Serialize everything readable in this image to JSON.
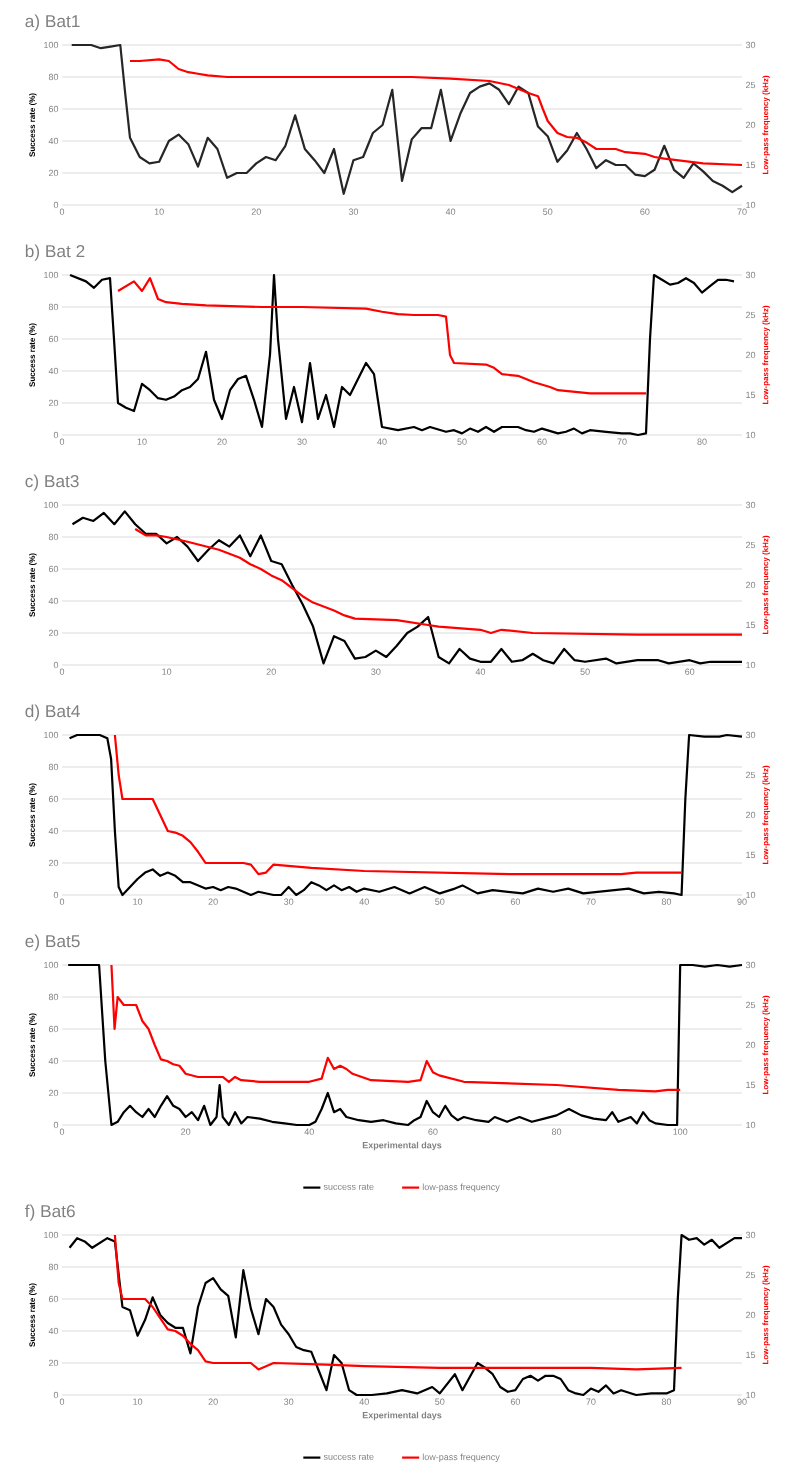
{
  "chart_data": [
    {
      "type": "line",
      "title": "a) Bat1",
      "ylabel": "Success rate (%)",
      "y2label": "Low-pass frequency (kHz)",
      "xlim": [
        0,
        70
      ],
      "xticks": [
        0,
        10,
        20,
        30,
        40,
        50,
        60,
        70
      ],
      "ylim": [
        0,
        100
      ],
      "yticks": [
        0,
        20,
        40,
        60,
        80,
        100
      ],
      "y2lim": [
        10,
        30
      ],
      "y2ticks": [
        10,
        15,
        20,
        25,
        30
      ],
      "grid": "y",
      "series": [
        {
          "color": "#262626",
          "x": [
            1,
            3,
            4,
            5,
            6,
            6.5,
            7,
            8,
            9,
            10,
            11,
            12,
            13,
            14,
            15,
            16,
            17,
            18,
            19,
            20,
            21,
            22,
            23,
            24,
            25,
            26,
            27,
            28,
            29,
            30,
            31,
            32,
            33,
            34,
            35,
            36,
            37,
            38,
            39,
            40,
            41,
            42,
            43,
            44,
            45,
            46,
            47,
            48,
            49,
            50,
            51,
            52,
            53,
            54,
            55,
            56,
            57,
            58,
            59,
            60,
            61,
            62,
            63,
            64,
            65,
            66,
            67,
            68,
            69,
            70
          ],
          "values": [
            100,
            100,
            98,
            99,
            100,
            70,
            42,
            30,
            26,
            27,
            40,
            44,
            38,
            24,
            42,
            35,
            17,
            20,
            20,
            26,
            30,
            28,
            37,
            56,
            35,
            28,
            20,
            35,
            7,
            28,
            30,
            45,
            50,
            72,
            15,
            41,
            48,
            48,
            72,
            40,
            57,
            70,
            74,
            76,
            72,
            63,
            74,
            70,
            49,
            43,
            27,
            34,
            45,
            35,
            23,
            28,
            25,
            25,
            19,
            18,
            22,
            37,
            22,
            17,
            26,
            21,
            15,
            12,
            8,
            12
          ]
        },
        {
          "color": "#ff0000",
          "axis": "y2",
          "x": [
            7,
            8,
            10,
            11,
            12,
            13,
            14,
            15,
            17,
            20,
            30,
            36,
            40,
            44,
            46,
            48,
            49,
            49.5,
            50,
            51,
            52,
            53,
            54,
            55,
            57,
            58,
            60,
            61,
            62,
            66,
            70
          ],
          "values": [
            28,
            28,
            28.2,
            28,
            27,
            26.6,
            26.4,
            26.2,
            26,
            26,
            26,
            26,
            25.8,
            25.5,
            25,
            24,
            23.6,
            22,
            20.5,
            19,
            18.5,
            18.4,
            17.8,
            17,
            17,
            16.6,
            16.4,
            16,
            15.8,
            15.2,
            15
          ]
        }
      ]
    },
    {
      "type": "line",
      "title": "b) Bat 2",
      "ylabel": "Success rate (%)",
      "y2label": "Low-pass frequency (kHz)",
      "xlim": [
        0,
        85
      ],
      "xticks": [
        0,
        10,
        20,
        30,
        40,
        50,
        60,
        70,
        80
      ],
      "ylim": [
        0,
        100
      ],
      "yticks": [
        0,
        20,
        40,
        60,
        80,
        100
      ],
      "y2lim": [
        10,
        30
      ],
      "y2ticks": [
        10,
        15,
        20,
        25,
        30
      ],
      "grid": "y",
      "series": [
        {
          "color": "#000000",
          "x": [
            1,
            3,
            4,
            5,
            6,
            6.5,
            7,
            8,
            9,
            10,
            11,
            12,
            13,
            14,
            15,
            16,
            17,
            18,
            19,
            20,
            21,
            22,
            23,
            24,
            25,
            26,
            26.5,
            27,
            28,
            29,
            30,
            31,
            32,
            33,
            34,
            35,
            36,
            37,
            38,
            39,
            40,
            42,
            44,
            45,
            46,
            48,
            49,
            50,
            51,
            52,
            53,
            54,
            55,
            57,
            58,
            59,
            60,
            62,
            63,
            64,
            65,
            66,
            68,
            70,
            71,
            72,
            73,
            73.5,
            74,
            75,
            76,
            77,
            78,
            79,
            80,
            81,
            82,
            83,
            84
          ],
          "values": [
            100,
            96,
            92,
            97,
            98,
            60,
            20,
            17,
            15,
            32,
            28,
            23,
            22,
            24,
            28,
            30,
            35,
            52,
            22,
            10,
            28,
            35,
            37,
            22,
            5,
            50,
            100,
            60,
            10,
            30,
            8,
            45,
            10,
            25,
            5,
            30,
            25,
            35,
            45,
            38,
            5,
            3,
            5,
            3,
            5,
            2,
            3,
            1,
            4,
            2,
            5,
            2,
            5,
            5,
            3,
            2,
            4,
            1,
            2,
            4,
            1,
            3,
            2,
            1,
            1,
            0,
            1,
            60,
            100,
            97,
            94,
            95,
            98,
            95,
            89,
            93,
            97,
            97,
            96
          ]
        },
        {
          "color": "#ff0000",
          "axis": "y2",
          "x": [
            7,
            8,
            9,
            10,
            11,
            12,
            13,
            15,
            18,
            25,
            30,
            38,
            40,
            42,
            44,
            47,
            48,
            48.5,
            49,
            53,
            54,
            55,
            57,
            58,
            59,
            61,
            62,
            64,
            66,
            73
          ],
          "values": [
            28,
            28.6,
            29.2,
            28,
            29.6,
            27,
            26.6,
            26.4,
            26.2,
            26,
            26,
            25.8,
            25.4,
            25.1,
            25,
            25,
            24.8,
            20,
            19,
            18.8,
            18.4,
            17.6,
            17.4,
            17,
            16.6,
            16,
            15.6,
            15.4,
            15.2,
            15.2
          ]
        }
      ]
    },
    {
      "type": "line",
      "title": "c) Bat3",
      "ylabel": "Success rate (%)",
      "y2label": "Low-pass frequency (kHz)",
      "xlim": [
        0,
        65
      ],
      "xticks": [
        0,
        10,
        20,
        30,
        40,
        50,
        60
      ],
      "ylim": [
        0,
        100
      ],
      "yticks": [
        0,
        20,
        40,
        60,
        80,
        100
      ],
      "y2lim": [
        10,
        30
      ],
      "y2ticks": [
        10,
        15,
        20,
        25,
        30
      ],
      "grid": "y",
      "series": [
        {
          "color": "#000000",
          "x": [
            1,
            2,
            3,
            4,
            5,
            6,
            7,
            8,
            9,
            10,
            11,
            12,
            13,
            14,
            15,
            16,
            17,
            18,
            19,
            20,
            21,
            22,
            23,
            24,
            25,
            26,
            27,
            28,
            29,
            30,
            31,
            32,
            33,
            34,
            35,
            36,
            37,
            38,
            39,
            40,
            41,
            42,
            43,
            44,
            45,
            46,
            47,
            48,
            49,
            50,
            52,
            53,
            55,
            57,
            58,
            60,
            61,
            62,
            63,
            65
          ],
          "values": [
            88,
            92,
            90,
            95,
            88,
            96,
            88,
            82,
            82,
            76,
            80,
            74,
            65,
            72,
            78,
            74,
            81,
            68,
            81,
            65,
            63,
            50,
            38,
            24,
            1,
            18,
            15,
            4,
            5,
            9,
            5,
            12,
            20,
            24,
            30,
            5,
            1,
            10,
            4,
            2,
            2,
            10,
            2,
            3,
            7,
            3,
            1,
            10,
            3,
            2,
            4,
            1,
            3,
            3,
            1,
            3,
            1,
            2,
            2,
            2
          ]
        },
        {
          "color": "#ff0000",
          "axis": "y2",
          "x": [
            7,
            8,
            9,
            10,
            12,
            15,
            17,
            18,
            19,
            20,
            21,
            22,
            23,
            24,
            26,
            27,
            28,
            32,
            35,
            36,
            40,
            41,
            42,
            45,
            55,
            65
          ],
          "values": [
            27,
            26.2,
            26.2,
            26,
            25.4,
            24.4,
            23.4,
            22.6,
            22,
            21.2,
            20.6,
            19.6,
            18.6,
            17.8,
            16.8,
            16.2,
            15.8,
            15.6,
            15,
            14.8,
            14.4,
            14,
            14.4,
            14,
            13.8,
            13.8
          ]
        }
      ]
    },
    {
      "type": "line",
      "title": "d) Bat4",
      "ylabel": "Success rate (%)",
      "y2label": "Low-pass frequency (kHz)",
      "xlim": [
        0,
        90
      ],
      "xticks": [
        0,
        10,
        20,
        30,
        40,
        50,
        60,
        70,
        80,
        90
      ],
      "ylim": [
        0,
        100
      ],
      "yticks": [
        0,
        20,
        40,
        60,
        80,
        100
      ],
      "y2lim": [
        10,
        30
      ],
      "y2ticks": [
        10,
        15,
        20,
        25,
        30
      ],
      "grid": "y",
      "series": [
        {
          "color": "#000000",
          "x": [
            1,
            2,
            5,
            6,
            6.5,
            7,
            7.5,
            8,
            9,
            10,
            11,
            12,
            13,
            14,
            15,
            16,
            17,
            18,
            19,
            20,
            21,
            22,
            23,
            24,
            25,
            26,
            27,
            28,
            29,
            30,
            31,
            32,
            33,
            34,
            35,
            36,
            37,
            38,
            39,
            40,
            42,
            44,
            46,
            48,
            50,
            52,
            53,
            55,
            57,
            59,
            61,
            63,
            65,
            67,
            69,
            71,
            73,
            75,
            77,
            79,
            81,
            82,
            82.5,
            83,
            85,
            87,
            88,
            90
          ],
          "values": [
            98,
            100,
            100,
            98,
            85,
            40,
            5,
            0,
            5,
            10,
            14,
            16,
            12,
            14,
            12,
            8,
            8,
            6,
            4,
            5,
            3,
            5,
            4,
            2,
            0,
            2,
            1,
            0,
            0,
            5,
            0,
            3,
            8,
            6,
            3,
            6,
            3,
            5,
            2,
            4,
            2,
            5,
            1,
            5,
            1,
            4,
            6,
            1,
            3,
            2,
            1,
            4,
            2,
            4,
            1,
            2,
            3,
            4,
            1,
            2,
            1,
            0,
            60,
            100,
            99,
            99,
            100,
            99
          ]
        },
        {
          "color": "#ff0000",
          "axis": "y2",
          "x": [
            7,
            7.5,
            8,
            9,
            11,
            12,
            13,
            14,
            15,
            16,
            17,
            18,
            19,
            24,
            25,
            26,
            27,
            28,
            33,
            40,
            50,
            60,
            70,
            74,
            76,
            82
          ],
          "values": [
            30,
            25,
            22,
            22,
            22,
            22,
            20,
            18,
            17.8,
            17.4,
            16.6,
            15.4,
            14,
            14,
            13.8,
            12.6,
            12.8,
            13.8,
            13.4,
            13,
            12.8,
            12.6,
            12.6,
            12.6,
            12.8,
            12.8
          ]
        }
      ]
    },
    {
      "type": "line",
      "title": "e) Bat5",
      "ylabel": "Success rate (%)",
      "y2label": "Low-pass frequency (kHz)",
      "xlabel": "Experimental days",
      "legend": "bottom",
      "xlim": [
        0,
        110
      ],
      "xticks": [
        0,
        20,
        40,
        60,
        80,
        100
      ],
      "ylim": [
        0,
        100
      ],
      "yticks": [
        0,
        20,
        40,
        60,
        80,
        100
      ],
      "y2lim": [
        10,
        30
      ],
      "y2ticks": [
        10,
        15,
        20,
        25,
        30
      ],
      "grid": "y",
      "series": [
        {
          "name": "success rate",
          "color": "#000000",
          "x": [
            1,
            6,
            7,
            8,
            9,
            10,
            11,
            12,
            13,
            14,
            15,
            16,
            17,
            18,
            19,
            20,
            21,
            22,
            23,
            24,
            25,
            25.5,
            26,
            27,
            28,
            29,
            30,
            32,
            34,
            36,
            38,
            40,
            41,
            42,
            43,
            44,
            45,
            46,
            48,
            50,
            52,
            54,
            56,
            57,
            58,
            59,
            60,
            61,
            62,
            63,
            64,
            65,
            67,
            69,
            70,
            72,
            74,
            76,
            78,
            80,
            82,
            84,
            86,
            88,
            89,
            90,
            92,
            93,
            94,
            95,
            96,
            98,
            99.5,
            100,
            102,
            104,
            106,
            108,
            110
          ],
          "values": [
            100,
            100,
            40,
            0,
            2,
            8,
            12,
            8,
            5,
            10,
            5,
            12,
            18,
            12,
            10,
            5,
            8,
            3,
            12,
            0,
            5,
            25,
            5,
            0,
            8,
            1,
            5,
            4,
            2,
            1,
            0,
            0,
            2,
            10,
            20,
            8,
            10,
            5,
            3,
            2,
            3,
            1,
            0,
            3,
            5,
            15,
            8,
            5,
            12,
            6,
            3,
            5,
            3,
            2,
            5,
            2,
            5,
            2,
            4,
            6,
            10,
            6,
            4,
            3,
            8,
            2,
            5,
            1,
            8,
            3,
            1,
            0,
            0,
            100,
            100,
            99,
            100,
            99,
            100
          ]
        },
        {
          "name": "low-pass frequency",
          "color": "#ff0000",
          "axis": "y2",
          "x": [
            8,
            8.5,
            9,
            10,
            11,
            12,
            13,
            14,
            15,
            16,
            17,
            18,
            19,
            20,
            22,
            26,
            27,
            28,
            29,
            32,
            40,
            42,
            43,
            44,
            45,
            46,
            47,
            50,
            56,
            58,
            59,
            60,
            61,
            65,
            80,
            90,
            96,
            98,
            100
          ],
          "values": [
            30,
            22,
            26,
            25,
            25,
            25,
            23,
            22,
            20,
            18.2,
            18,
            17.6,
            17.4,
            16.4,
            16,
            16,
            15.4,
            16,
            15.6,
            15.4,
            15.4,
            15.8,
            18.4,
            17,
            17.4,
            17,
            16.4,
            15.6,
            15.4,
            15.6,
            18,
            16.6,
            16.2,
            15.4,
            15,
            14.4,
            14.2,
            14.4,
            14.4
          ]
        }
      ]
    },
    {
      "type": "line",
      "title": "f) Bat6",
      "ylabel": "Success rate (%)",
      "y2label": "Low-pass frequency (kHz)",
      "xlabel": "Experimental days",
      "legend": "bottom",
      "xlim": [
        0,
        90
      ],
      "xticks": [
        0,
        10,
        20,
        30,
        40,
        50,
        60,
        70,
        80,
        90
      ],
      "ylim": [
        0,
        100
      ],
      "yticks": [
        0,
        20,
        40,
        60,
        80,
        100
      ],
      "y2lim": [
        10,
        30
      ],
      "y2ticks": [
        10,
        15,
        20,
        25,
        30
      ],
      "grid": "y",
      "series": [
        {
          "name": "success rate",
          "color": "#000000",
          "x": [
            1,
            2,
            3,
            4,
            5,
            6,
            7,
            8,
            9,
            10,
            11,
            12,
            13,
            14,
            15,
            16,
            17,
            18,
            19,
            20,
            21,
            22,
            23,
            24,
            25,
            26,
            27,
            28,
            29,
            30,
            31,
            32,
            33,
            34,
            35,
            36,
            37,
            38,
            39,
            41,
            43,
            45,
            47,
            49,
            50,
            52,
            53,
            55,
            56,
            57,
            58,
            59,
            60,
            61,
            62,
            63,
            64,
            65,
            66,
            67,
            68,
            69,
            70,
            71,
            72,
            73,
            74,
            76,
            78,
            80,
            81,
            81.5,
            82,
            83,
            84,
            85,
            86,
            87,
            88,
            89,
            90
          ],
          "values": [
            92,
            98,
            96,
            92,
            95,
            98,
            96,
            55,
            53,
            37,
            47,
            61,
            50,
            45,
            42,
            42,
            26,
            55,
            70,
            73,
            66,
            62,
            36,
            78,
            54,
            38,
            60,
            55,
            44,
            38,
            30,
            28,
            27,
            15,
            3,
            25,
            20,
            3,
            0,
            0,
            1,
            3,
            1,
            5,
            1,
            13,
            3,
            20,
            17,
            13,
            5,
            2,
            3,
            10,
            12,
            9,
            12,
            12,
            10,
            3,
            1,
            0,
            4,
            2,
            6,
            1,
            3,
            0,
            1,
            1,
            3,
            60,
            100,
            97,
            98,
            94,
            97,
            92,
            95,
            98,
            98
          ]
        },
        {
          "name": "low-pass frequency",
          "color": "#ff0000",
          "axis": "y2",
          "x": [
            7,
            7.5,
            8,
            9,
            11,
            12,
            13,
            14,
            15,
            16,
            17,
            18,
            19,
            20,
            25,
            26,
            27,
            28,
            35,
            40,
            50,
            60,
            70,
            76,
            82
          ],
          "values": [
            30,
            24,
            22,
            22,
            22,
            21,
            19.6,
            18.2,
            18,
            17.4,
            16.4,
            15.6,
            14.2,
            14,
            14,
            13.2,
            13.6,
            14,
            13.8,
            13.6,
            13.4,
            13.4,
            13.4,
            13.2,
            13.4
          ]
        }
      ]
    }
  ]
}
